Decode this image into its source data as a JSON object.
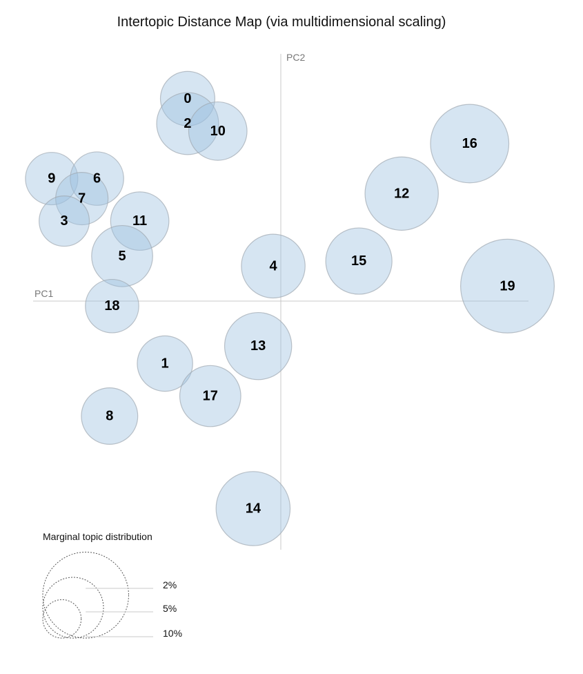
{
  "title": "Intertopic Distance Map (via multidimensional scaling)",
  "colors": {
    "bubble_fill": "#9ec2e0",
    "bubble_stroke": "#a0a8b0",
    "axis": "#c8c8c8",
    "text": "#000000"
  },
  "chart_data": {
    "type": "scatter",
    "title": "Intertopic Distance Map (via multidimensional scaling)",
    "xlabel": "PC1",
    "ylabel": "PC2",
    "xlim": [
      -1,
      1
    ],
    "ylim": [
      -1,
      1
    ],
    "grid": false,
    "size_encoding": "marginal topic distribution",
    "points": [
      {
        "label": "0",
        "x": -0.37,
        "y": 0.81,
        "size": 2.7
      },
      {
        "label": "2",
        "x": -0.37,
        "y": 0.71,
        "size": 3.5
      },
      {
        "label": "10",
        "x": -0.25,
        "y": 0.68,
        "size": 3.1
      },
      {
        "label": "9",
        "x": -0.91,
        "y": 0.49,
        "size": 2.5
      },
      {
        "label": "6",
        "x": -0.73,
        "y": 0.49,
        "size": 2.6
      },
      {
        "label": "7",
        "x": -0.79,
        "y": 0.41,
        "size": 2.5
      },
      {
        "label": "3",
        "x": -0.86,
        "y": 0.32,
        "size": 2.3
      },
      {
        "label": "11",
        "x": -0.56,
        "y": 0.32,
        "size": 3.1
      },
      {
        "label": "5",
        "x": -0.63,
        "y": 0.18,
        "size": 3.4
      },
      {
        "label": "4",
        "x": -0.03,
        "y": 0.14,
        "size": 3.7
      },
      {
        "label": "15",
        "x": 0.31,
        "y": 0.16,
        "size": 4.0
      },
      {
        "label": "12",
        "x": 0.48,
        "y": 0.43,
        "size": 4.9
      },
      {
        "label": "16",
        "x": 0.75,
        "y": 0.63,
        "size": 5.6
      },
      {
        "label": "19",
        "x": 0.9,
        "y": 0.06,
        "size": 8.0
      },
      {
        "label": "18",
        "x": -0.67,
        "y": -0.02,
        "size": 2.6
      },
      {
        "label": "13",
        "x": -0.09,
        "y": -0.18,
        "size": 4.1
      },
      {
        "label": "1",
        "x": -0.46,
        "y": -0.25,
        "size": 2.8
      },
      {
        "label": "17",
        "x": -0.28,
        "y": -0.38,
        "size": 3.4
      },
      {
        "label": "8",
        "x": -0.68,
        "y": -0.46,
        "size": 2.9
      },
      {
        "label": "14",
        "x": -0.11,
        "y": -0.83,
        "size": 5.0
      }
    ],
    "legend": {
      "title": "Marginal topic distribution",
      "entries": [
        {
          "label": "2%",
          "size": 2
        },
        {
          "label": "5%",
          "size": 5
        },
        {
          "label": "10%",
          "size": 10
        }
      ],
      "placement": "bottom-left"
    }
  }
}
